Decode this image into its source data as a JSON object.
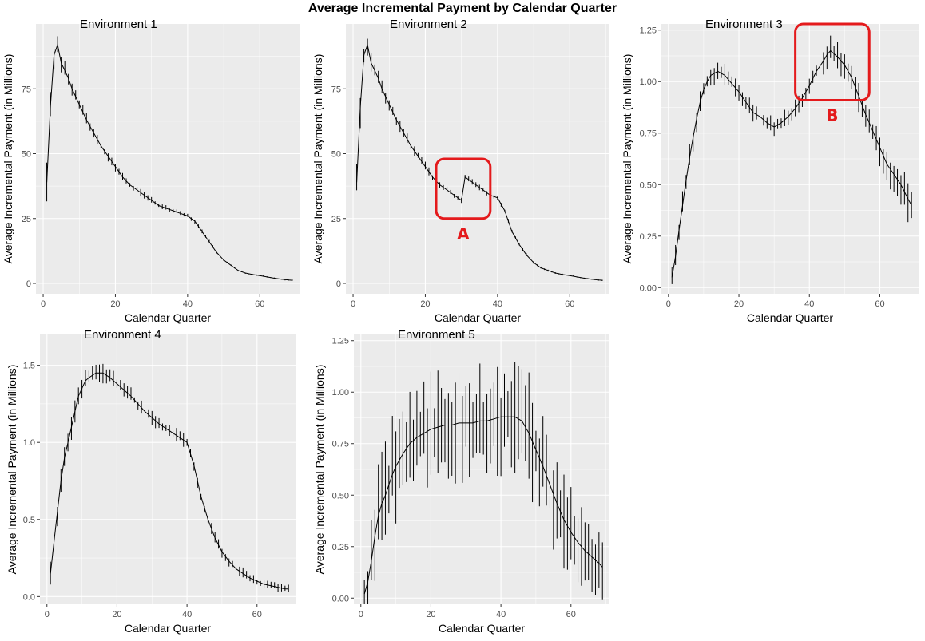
{
  "title": "Average Incremental Payment by Calendar Quarter",
  "chart_data": [
    {
      "type": "line",
      "panel_title": "Environment 1",
      "xlabel": "Calendar Quarter",
      "ylabel": "Average Incremental Payment (in Millions)",
      "xlim": [
        -2,
        71
      ],
      "ylim": [
        -4,
        100
      ],
      "xticks": [
        0,
        20,
        40,
        60
      ],
      "yticks": [
        0,
        25,
        50,
        75
      ],
      "ytick_labels": [
        "0",
        "25",
        "50",
        "75"
      ],
      "x": [
        1,
        2,
        3,
        4,
        5,
        6,
        7,
        8,
        9,
        10,
        12,
        14,
        16,
        18,
        20,
        22,
        24,
        26,
        28,
        30,
        32,
        34,
        36,
        38,
        40,
        41,
        42,
        44,
        46,
        48,
        50,
        52,
        54,
        56,
        58,
        60,
        62,
        64,
        66,
        68,
        69
      ],
      "y": [
        39,
        68,
        88,
        92,
        85,
        82,
        79,
        75,
        72,
        69,
        63,
        58,
        53,
        49,
        45,
        41,
        38,
        36,
        34,
        32,
        30,
        29,
        28,
        27,
        26,
        25,
        24,
        20,
        16,
        12,
        9,
        7,
        5,
        4,
        3.4,
        3,
        2.5,
        2,
        1.6,
        1.3,
        1.2
      ],
      "spread": [
        8,
        10,
        6,
        5,
        5,
        4,
        4,
        4,
        3,
        3,
        3,
        2.5,
        2.2,
        2,
        2,
        1.8,
        1.6,
        1.5,
        1.4,
        1.3,
        1.2,
        1.2,
        1.1,
        1,
        1,
        1,
        1,
        0.9,
        0.8,
        0.7,
        0.6,
        0.5,
        0.5,
        0.4,
        0.4,
        0.4,
        0.3,
        0.3,
        0.3,
        0.3,
        0.3
      ],
      "annotations": []
    },
    {
      "type": "line",
      "panel_title": "Environment 2",
      "xlabel": "Calendar Quarter",
      "ylabel": "Average Incremental Payment (in Millions)",
      "xlim": [
        -2,
        71
      ],
      "ylim": [
        -4,
        100
      ],
      "xticks": [
        0,
        20,
        40,
        60
      ],
      "yticks": [
        0,
        25,
        50,
        75
      ],
      "ytick_labels": [
        "0",
        "25",
        "50",
        "75"
      ],
      "x": [
        1,
        2,
        3,
        4,
        5,
        6,
        7,
        8,
        9,
        10,
        12,
        14,
        16,
        18,
        20,
        22,
        24,
        26,
        28,
        30,
        31,
        32,
        34,
        36,
        38,
        40,
        42,
        44,
        46,
        48,
        50,
        52,
        54,
        56,
        58,
        60,
        62,
        64,
        66,
        68,
        69
      ],
      "y": [
        39,
        68,
        88,
        92,
        85,
        82,
        79,
        75,
        72,
        69,
        63,
        58,
        53,
        49,
        45,
        41,
        38,
        36,
        34,
        32,
        41,
        40,
        38,
        36,
        34,
        33,
        28,
        20,
        15,
        11,
        8,
        6,
        5,
        4,
        3.4,
        3,
        2.5,
        2,
        1.6,
        1.3,
        1.2
      ],
      "spread": [
        8,
        10,
        6,
        5,
        5,
        4,
        4,
        4,
        3,
        3,
        3,
        2.5,
        2.2,
        2,
        2,
        1.8,
        1.6,
        1.5,
        1.4,
        1.3,
        1.5,
        1.4,
        1.3,
        1.2,
        1.1,
        1,
        1,
        0.9,
        0.8,
        0.7,
        0.6,
        0.5,
        0.5,
        0.4,
        0.4,
        0.4,
        0.3,
        0.3,
        0.3,
        0.3,
        0.3
      ],
      "annotations": [
        {
          "label": "A",
          "x0": 23,
          "x1": 38,
          "y0": 25,
          "y1": 48
        }
      ]
    },
    {
      "type": "line",
      "panel_title": "Environment 3",
      "xlabel": "Calendar Quarter",
      "ylabel": "Average Incremental Payment (in Millions)",
      "xlim": [
        -2,
        71
      ],
      "ylim": [
        -0.03,
        1.28
      ],
      "xticks": [
        0,
        20,
        40,
        60
      ],
      "yticks": [
        0,
        0.25,
        0.5,
        0.75,
        1,
        1.25
      ],
      "ytick_labels": [
        "0.00",
        "0.25",
        "0.50",
        "0.75",
        "1.00",
        "1.25"
      ],
      "x": [
        1,
        2,
        3,
        4,
        5,
        6,
        7,
        8,
        9,
        10,
        11,
        12,
        14,
        16,
        18,
        20,
        22,
        24,
        26,
        28,
        30,
        32,
        34,
        36,
        38,
        40,
        42,
        44,
        45,
        46,
        48,
        50,
        52,
        54,
        56,
        58,
        60,
        62,
        64,
        66,
        68,
        69
      ],
      "y": [
        0.05,
        0.15,
        0.28,
        0.4,
        0.52,
        0.63,
        0.73,
        0.82,
        0.9,
        0.96,
        1.0,
        1.03,
        1.05,
        1.03,
        0.99,
        0.95,
        0.9,
        0.85,
        0.83,
        0.8,
        0.78,
        0.8,
        0.83,
        0.87,
        0.92,
        0.98,
        1.05,
        1.1,
        1.13,
        1.15,
        1.12,
        1.08,
        1.02,
        0.93,
        0.84,
        0.76,
        0.68,
        0.6,
        0.55,
        0.5,
        0.43,
        0.4
      ],
      "spread": [
        0.06,
        0.07,
        0.07,
        0.07,
        0.07,
        0.07,
        0.07,
        0.07,
        0.06,
        0.06,
        0.06,
        0.06,
        0.06,
        0.06,
        0.05,
        0.05,
        0.05,
        0.05,
        0.05,
        0.05,
        0.05,
        0.05,
        0.05,
        0.05,
        0.05,
        0.06,
        0.07,
        0.08,
        0.08,
        0.08,
        0.08,
        0.08,
        0.08,
        0.08,
        0.09,
        0.09,
        0.1,
        0.1,
        0.1,
        0.1,
        0.12,
        0.15
      ],
      "annotations": [
        {
          "label": "B",
          "x0": 36,
          "x1": 57,
          "y0": 0.91,
          "y1": 1.28
        }
      ]
    },
    {
      "type": "line",
      "panel_title": "Environment 4",
      "xlabel": "Calendar Quarter",
      "ylabel": "Average Incremental Payment (in Millions)",
      "xlim": [
        -2,
        71
      ],
      "ylim": [
        -0.05,
        1.7
      ],
      "xticks": [
        0,
        20,
        40,
        60
      ],
      "yticks": [
        0,
        0.5,
        1,
        1.5
      ],
      "ytick_labels": [
        "0.0",
        "0.5",
        "1.0",
        "1.5"
      ],
      "x": [
        1,
        2,
        3,
        4,
        5,
        6,
        7,
        8,
        9,
        10,
        11,
        12,
        14,
        16,
        18,
        20,
        22,
        24,
        26,
        28,
        30,
        32,
        34,
        36,
        38,
        40,
        42,
        44,
        46,
        48,
        50,
        52,
        54,
        56,
        58,
        60,
        62,
        64,
        66,
        68,
        69
      ],
      "y": [
        0.15,
        0.35,
        0.55,
        0.75,
        0.9,
        1.0,
        1.1,
        1.2,
        1.3,
        1.35,
        1.4,
        1.42,
        1.45,
        1.45,
        1.42,
        1.38,
        1.34,
        1.3,
        1.25,
        1.2,
        1.16,
        1.12,
        1.09,
        1.06,
        1.03,
        1.0,
        0.85,
        0.65,
        0.5,
        0.38,
        0.29,
        0.23,
        0.18,
        0.15,
        0.12,
        0.1,
        0.08,
        0.07,
        0.06,
        0.05,
        0.05
      ],
      "spread": [
        0.1,
        0.1,
        0.1,
        0.1,
        0.1,
        0.1,
        0.1,
        0.1,
        0.1,
        0.1,
        0.08,
        0.08,
        0.07,
        0.07,
        0.07,
        0.06,
        0.06,
        0.06,
        0.05,
        0.05,
        0.05,
        0.05,
        0.05,
        0.05,
        0.05,
        0.05,
        0.05,
        0.04,
        0.04,
        0.04,
        0.04,
        0.04,
        0.04,
        0.04,
        0.03,
        0.03,
        0.03,
        0.03,
        0.03,
        0.03,
        0.03
      ],
      "annotations": []
    },
    {
      "type": "line",
      "panel_title": "Environment 5",
      "xlabel": "Calendar Quarter",
      "ylabel": "Average Incremental Payment (in Millions)",
      "xlim": [
        -2,
        71
      ],
      "ylim": [
        -0.03,
        1.28
      ],
      "xticks": [
        0,
        20,
        40,
        60
      ],
      "yticks": [
        0,
        0.25,
        0.5,
        0.75,
        1,
        1.25
      ],
      "ytick_labels": [
        "0.00",
        "0.25",
        "0.50",
        "0.75",
        "1.00",
        "1.25"
      ],
      "x": [
        1,
        2,
        3,
        4,
        5,
        6,
        7,
        8,
        9,
        10,
        12,
        14,
        16,
        18,
        20,
        22,
        24,
        26,
        28,
        30,
        32,
        34,
        36,
        38,
        40,
        42,
        44,
        46,
        48,
        50,
        52,
        54,
        56,
        58,
        60,
        62,
        64,
        66,
        68,
        69
      ],
      "y": [
        0.02,
        0.08,
        0.18,
        0.3,
        0.4,
        0.46,
        0.5,
        0.55,
        0.6,
        0.64,
        0.7,
        0.75,
        0.78,
        0.8,
        0.82,
        0.83,
        0.84,
        0.84,
        0.85,
        0.85,
        0.85,
        0.86,
        0.86,
        0.87,
        0.88,
        0.88,
        0.88,
        0.86,
        0.8,
        0.72,
        0.64,
        0.55,
        0.46,
        0.38,
        0.32,
        0.27,
        0.23,
        0.2,
        0.17,
        0.15
      ],
      "spread": [
        0.1,
        0.15,
        0.2,
        0.22,
        0.25,
        0.28,
        0.28,
        0.28,
        0.3,
        0.3,
        0.3,
        0.3,
        0.3,
        0.3,
        0.3,
        0.3,
        0.3,
        0.3,
        0.3,
        0.3,
        0.3,
        0.3,
        0.3,
        0.3,
        0.3,
        0.3,
        0.3,
        0.3,
        0.3,
        0.3,
        0.28,
        0.28,
        0.28,
        0.25,
        0.25,
        0.25,
        0.22,
        0.2,
        0.2,
        0.18
      ],
      "annotations": []
    }
  ]
}
